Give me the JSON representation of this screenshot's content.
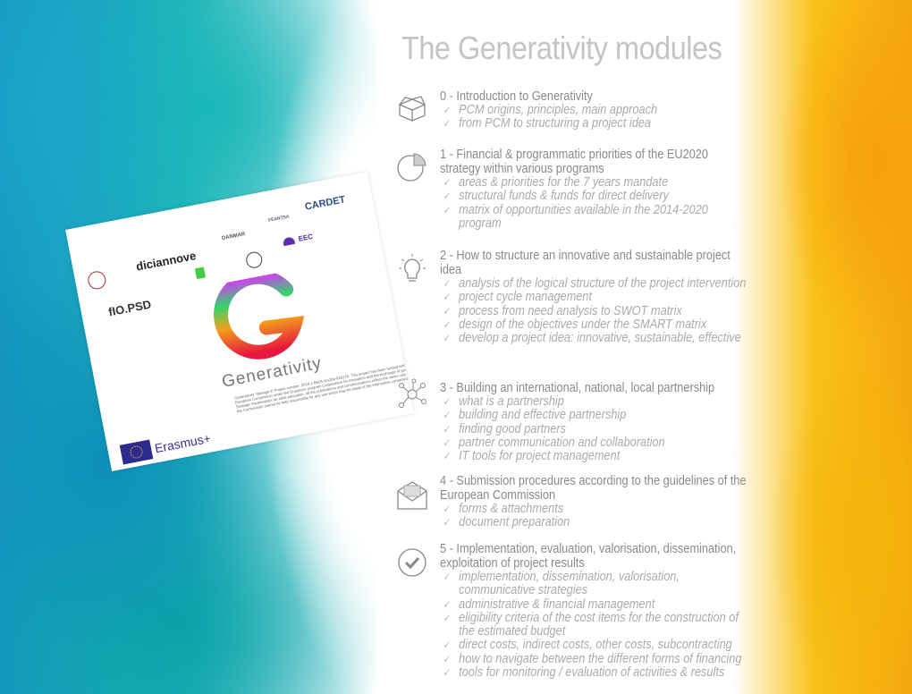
{
  "title": "The Generativity modules",
  "flyer": {
    "partner_logos": [
      "diciannove",
      "DANMAR",
      "FEANTSA",
      "CARDET",
      "fIO.PSD",
      "EEC"
    ],
    "brand": "Generativity",
    "disclaimer": "Generativity: Manage it! Project number: 2016-1-BE01-KA204-016276. This project has been funded with support from the European Commission under the Erasmus+ program Cooperation for innovation and the exchange of good practices, Strategic Partnerships for adult education. All the publications and communications reflect the views only of the author, and the Commission cannot be held responsible for any use which may be made of the information contained therein.",
    "erasmus": "Erasmus+"
  },
  "modules": [
    {
      "icon": "open-box-icon",
      "heading": "0 - Introduction to Generativity",
      "items": [
        "PCM origins, principles, main approach",
        "from PCM to structuring a project idea"
      ]
    },
    {
      "icon": "pie-chart-icon",
      "heading": "1 - Financial & programmatic priorities of the EU2020 strategy within various programs",
      "items": [
        "areas & priorities for the 7 years mandate",
        "structural funds & funds for direct delivery",
        "matrix of opportunities available in the 2014-2020 program"
      ]
    },
    {
      "icon": "lightbulb-icon",
      "heading": "2 - How to structure an innovative and sustainable project idea",
      "items": [
        "analysis of the logical structure of the project intervention",
        "project cycle management",
        "process from need analysis to SWOT matrix",
        "design of the objectives under the SMART matrix",
        "develop a project idea: innovative, sustainable, effective"
      ]
    },
    {
      "icon": "network-icon",
      "heading": "3 - Building an international, national, local partnership",
      "items": [
        "what is a partnership",
        "building and effective partnership",
        "finding good partners",
        "partner communication and collaboration",
        "IT tools for project management"
      ]
    },
    {
      "icon": "envelope-icon",
      "heading": "4 - Submission procedures according to the guidelines of the European Commission",
      "items": [
        "forms & attachments",
        "document preparation"
      ]
    },
    {
      "icon": "check-circle-icon",
      "heading": "5 - Implementation, evaluation, valorisation, dissemination, exploitation of project results",
      "items": [
        "implementation, dissemination, valorisation, communicative strategies",
        "administrative & financial management",
        "eligibility criteria of the cost items for the construction of the estimated budget",
        "direct costs, indirect costs, other costs, subcontracting",
        "how to navigate between the different forms of financing",
        "tools for monitoring / evaluation of activities & results"
      ]
    }
  ]
}
